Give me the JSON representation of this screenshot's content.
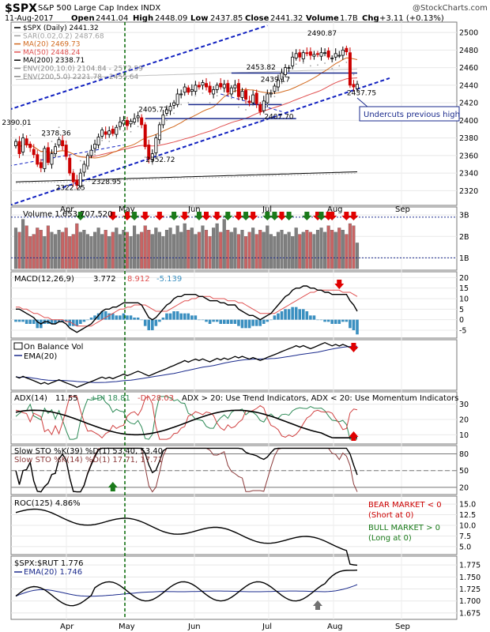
{
  "header": {
    "symbol": "$SPX",
    "name": "S&P 500 Large Cap Index INDX",
    "date": "11-Aug-2017",
    "open_label": "Open",
    "open": "2441.04",
    "high_label": "High",
    "high": "2448.09",
    "low_label": "Low",
    "low": "2437.85",
    "close_label": "Close",
    "close": "2441.32",
    "volume_label": "Volume",
    "volume": "1.7B",
    "chg_label": "Chg",
    "chg": "+3.11 (+0.13%)",
    "watermark": "@StockCharts.com"
  },
  "colors": {
    "up": "#000000",
    "down": "#cc0000",
    "ma20": "#d2691e",
    "ma50": "#e05050",
    "ma200": "#000000",
    "sar": "#a0a0a0",
    "env": "#c0c0c0",
    "trend": "#1020c0",
    "vol_up": "#7f7f7f",
    "vol_down": "#c86464",
    "macd_hist": "#3a8fc0",
    "ema": "#1a2a8c",
    "adx_plus": "#2e8b57",
    "adx_minus": "#d04040",
    "arrow_red": "#e00000",
    "arrow_green": "#1a7a1a",
    "arrow_gray": "#707070",
    "may_line": "#006600"
  },
  "x_axis": [
    "Apr",
    "May",
    "Jun",
    "Jul",
    "Aug",
    "Sep"
  ],
  "chart_data": [
    {
      "type": "line",
      "panel": "price",
      "legend": [
        "$SPX (Daily) 2441.32",
        "SAR(0.02,0.2) 2487.68",
        "MA(20) 2469.73",
        "MA(50) 2448.24",
        "MA(200) 2338.71",
        "ENV(200,10.0) 2104.84 - 2572.59",
        "ENV(200,5.0) 2221.78 - 2455.64"
      ],
      "ylim": [
        2305,
        2510
      ],
      "yticks": [
        2320,
        2340,
        2360,
        2380,
        2400,
        2420,
        2440,
        2460,
        2480,
        2500
      ],
      "close": [
        2376,
        2362,
        2380,
        2372,
        2369,
        2361,
        2350,
        2346,
        2368,
        2352,
        2362,
        2370,
        2378,
        2371,
        2359,
        2340,
        2330,
        2326,
        2340,
        2350,
        2360,
        2366,
        2373,
        2381,
        2389,
        2384,
        2388,
        2385,
        2392,
        2398,
        2400,
        2394,
        2399,
        2402,
        2405,
        2395,
        2370,
        2356,
        2362,
        2380,
        2395,
        2406,
        2412,
        2416,
        2420,
        2430,
        2430,
        2438,
        2432,
        2435,
        2440,
        2438,
        2443,
        2438,
        2432,
        2435,
        2440,
        2438,
        2441,
        2432,
        2437,
        2440,
        2427,
        2433,
        2424,
        2420,
        2429,
        2419,
        2410,
        2422,
        2430,
        2431,
        2439,
        2446,
        2454,
        2460,
        2460,
        2472,
        2476,
        2472,
        2477,
        2476,
        2474,
        2475,
        2475,
        2477,
        2477,
        2472,
        2471,
        2476,
        2474,
        2480,
        2478,
        2440,
        2438,
        2441
      ],
      "annotations": [
        "2390.01",
        "2378.36",
        "2322.25",
        "2328.95",
        "2405.77",
        "2352.72",
        "2453.82",
        "2439.17",
        "2407.70",
        "2490.87",
        "2437.75",
        "Undercuts previous high"
      ]
    },
    {
      "type": "bar",
      "panel": "volume",
      "legend": "Volume 1,653,707,520",
      "ylim": [
        0.5,
        3.3
      ],
      "yticks_labels": [
        "1B",
        "2B",
        "3B"
      ],
      "yticks": [
        1,
        2,
        3
      ],
      "unit": "B",
      "values": [
        2.4,
        2.2,
        2.8,
        2.5,
        2.0,
        2.1,
        2.4,
        2.3,
        2.0,
        2.5,
        2.2,
        2.1,
        2.3,
        2.2,
        2.4,
        2.0,
        2.1,
        2.6,
        2.2,
        2.3,
        2.1,
        2.0,
        2.2,
        2.4,
        2.1,
        2.3,
        2.0,
        2.2,
        2.4,
        2.1,
        2.3,
        2.2,
        2.0,
        2.5,
        2.1,
        2.2,
        2.5,
        2.3,
        2.1,
        2.4,
        2.2,
        2.0,
        2.3,
        2.4,
        2.1,
        2.5,
        2.2,
        2.6,
        2.3,
        2.4,
        2.1,
        2.2,
        2.5,
        2.3,
        2.0,
        2.4,
        2.6,
        2.2,
        2.8,
        2.3,
        2.2,
        2.4,
        2.1,
        2.3,
        2.0,
        2.2,
        2.4,
        2.1,
        2.3,
        2.2,
        2.5,
        2.1,
        2.0,
        2.2,
        2.3,
        2.1,
        2.2,
        2.0,
        2.4,
        2.1,
        2.2,
        2.3,
        2.2,
        2.1,
        2.3,
        2.4,
        2.2,
        2.5,
        2.3,
        2.2,
        2.4,
        2.3,
        2.1,
        2.6,
        2.5,
        1.7
      ]
    },
    {
      "type": "line",
      "panel": "macd",
      "legend_name": "MACD(12,26,9)",
      "legend_v1": "3.772",
      "legend_v2": "8.912",
      "legend_v3": "-5.139",
      "ylim": [
        -8,
        22
      ],
      "yticks": [
        -5,
        0,
        5,
        10,
        15,
        20
      ],
      "macd": [
        5,
        5,
        4,
        3,
        2,
        1,
        -1,
        -2,
        -1,
        -1,
        -2,
        -2,
        -1,
        -1,
        -2,
        -4,
        -5,
        -6,
        -5,
        -4,
        -3,
        -2,
        0,
        2,
        4,
        5,
        5,
        6,
        6,
        7,
        8,
        8,
        8,
        8,
        8,
        7,
        4,
        1,
        0,
        1,
        3,
        5,
        7,
        8,
        10,
        11,
        11,
        12,
        12,
        12,
        12,
        11,
        11,
        10,
        9,
        9,
        9,
        8,
        8,
        7,
        7,
        7,
        5,
        4,
        3,
        2,
        2,
        1,
        0,
        1,
        2,
        3,
        5,
        7,
        9,
        11,
        12,
        14,
        15,
        15,
        16,
        16,
        15,
        15,
        14,
        14,
        13,
        13,
        12,
        12,
        12,
        12,
        12,
        9,
        7,
        4
      ],
      "signal": [
        6,
        6,
        5,
        5,
        4,
        3,
        3,
        2,
        1,
        1,
        0,
        0,
        0,
        0,
        -1,
        -1,
        -2,
        -3,
        -3,
        -3,
        -3,
        -3,
        -2,
        -1,
        0,
        1,
        2,
        3,
        4,
        5,
        5,
        6,
        6,
        7,
        7,
        7,
        7,
        6,
        5,
        4,
        4,
        4,
        4,
        5,
        6,
        7,
        8,
        9,
        9,
        10,
        10,
        11,
        11,
        11,
        11,
        10,
        10,
        10,
        10,
        9,
        9,
        9,
        8,
        8,
        7,
        6,
        5,
        4,
        3,
        3,
        3,
        3,
        3,
        4,
        5,
        6,
        7,
        8,
        9,
        10,
        11,
        12,
        13,
        13,
        14,
        14,
        14,
        14,
        14,
        14,
        14,
        13,
        13,
        13,
        12,
        11
      ]
    },
    {
      "type": "line",
      "panel": "obv",
      "legend": "On Balance Vol",
      "legend_ema": "EMA(20)"
    },
    {
      "type": "line",
      "panel": "adx",
      "legend_name": "ADX(14)",
      "legend_adx": "11.55",
      "legend_pdi": "+DI 18.81",
      "legend_mdi": "-DI 28.03",
      "legend_note": "ADX > 20: Use Trend Indicators, ADX < 20: Use Momentum Indicators",
      "ylim": [
        5,
        37
      ],
      "yticks": [
        10,
        20,
        30
      ]
    },
    {
      "type": "line",
      "panel": "stoch",
      "legend1": "Slow STO %K(39) %D(1) 53.40, 53.40",
      "legend2": "Slow STO %K(14) %D(1) 17.71, 17.71",
      "ylim": [
        10,
        92
      ],
      "yticks": [
        20,
        50,
        80
      ]
    },
    {
      "type": "line",
      "panel": "roc",
      "legend": "ROC(125) 4.86%",
      "ylim": [
        3.5,
        16.5
      ],
      "yticks": [
        5.0,
        7.5,
        10.0,
        12.5,
        15.0
      ],
      "yticks_labels": [
        "5.0",
        "7.5",
        "10.0",
        "12.5",
        "15.0"
      ],
      "note_bear": "BEAR MARKET < 0",
      "note_bear2": "(Short at 0)",
      "note_bull": "BULL MARKET > 0",
      "note_bull2": "(Long at 0)"
    },
    {
      "type": "line",
      "panel": "ratio",
      "legend": "$SPX:$RUT 1.776",
      "legend_ema": "EMA(20) 1.746",
      "ylim": [
        1.665,
        1.79
      ],
      "yticks": [
        1.675,
        1.7,
        1.725,
        1.75,
        1.775
      ],
      "yticks_labels": [
        "1.675",
        "1.700",
        "1.725",
        "1.750",
        "1.775"
      ]
    }
  ]
}
